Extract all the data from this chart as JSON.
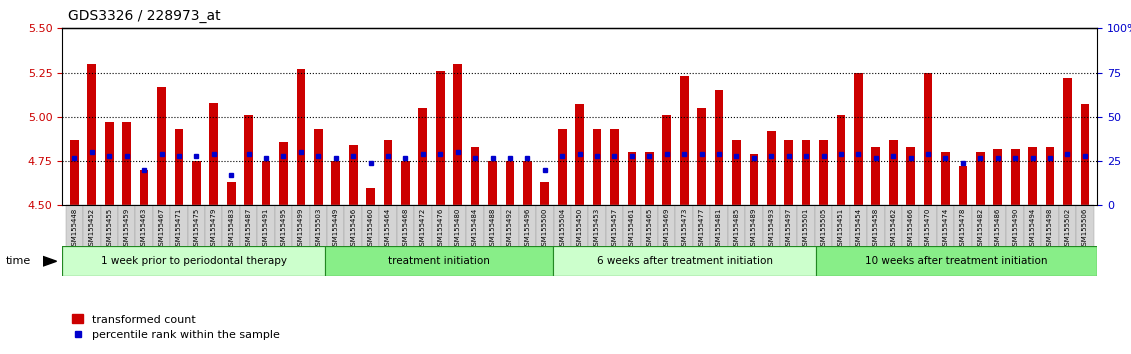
{
  "title": "GDS3326 / 228973_at",
  "ylim": [
    4.5,
    5.5
  ],
  "ylim_right": [
    0,
    100
  ],
  "yticks_left": [
    4.5,
    4.75,
    5.0,
    5.25,
    5.5
  ],
  "yticks_right": [
    0,
    25,
    50,
    75,
    100
  ],
  "ytick_labels_right": [
    "0",
    "25",
    "50",
    "75",
    "100%"
  ],
  "dotted_lines": [
    4.75,
    5.0,
    5.25
  ],
  "samples": [
    "GSM155448",
    "GSM155452",
    "GSM155455",
    "GSM155459",
    "GSM155463",
    "GSM155467",
    "GSM155471",
    "GSM155475",
    "GSM155479",
    "GSM155483",
    "GSM155487",
    "GSM155491",
    "GSM155495",
    "GSM155499",
    "GSM155503",
    "GSM155449",
    "GSM155456",
    "GSM155460",
    "GSM155464",
    "GSM155468",
    "GSM155472",
    "GSM155476",
    "GSM155480",
    "GSM155484",
    "GSM155488",
    "GSM155492",
    "GSM155496",
    "GSM155500",
    "GSM155504",
    "GSM155450",
    "GSM155453",
    "GSM155457",
    "GSM155461",
    "GSM155465",
    "GSM155469",
    "GSM155473",
    "GSM155477",
    "GSM155481",
    "GSM155485",
    "GSM155489",
    "GSM155493",
    "GSM155497",
    "GSM155501",
    "GSM155505",
    "GSM155451",
    "GSM155454",
    "GSM155458",
    "GSM155462",
    "GSM155466",
    "GSM155470",
    "GSM155474",
    "GSM155478",
    "GSM155482",
    "GSM155486",
    "GSM155490",
    "GSM155494",
    "GSM155498",
    "GSM155502",
    "GSM155506"
  ],
  "bar_values": [
    4.87,
    5.3,
    4.97,
    4.97,
    4.7,
    5.17,
    4.93,
    4.75,
    5.08,
    4.63,
    5.01,
    4.75,
    4.86,
    5.27,
    4.93,
    4.75,
    4.84,
    4.6,
    4.87,
    4.75,
    5.05,
    5.26,
    5.3,
    4.83,
    4.75,
    4.75,
    4.75,
    4.63,
    4.93,
    5.07,
    4.93,
    4.93,
    4.8,
    4.8,
    5.01,
    5.23,
    5.05,
    5.15,
    4.87,
    4.79,
    4.92,
    4.87,
    4.87,
    4.87,
    5.01,
    5.25,
    4.83,
    4.87,
    4.83,
    5.25,
    4.8,
    4.72,
    4.8,
    4.82,
    4.82,
    4.83,
    4.83,
    5.22,
    5.07
  ],
  "percentile_values": [
    27,
    30,
    28,
    28,
    20,
    29,
    28,
    28,
    29,
    17,
    29,
    27,
    28,
    30,
    28,
    27,
    28,
    24,
    28,
    27,
    29,
    29,
    30,
    27,
    27,
    27,
    27,
    20,
    28,
    29,
    28,
    28,
    28,
    28,
    29,
    29,
    29,
    29,
    28,
    27,
    28,
    28,
    28,
    28,
    29,
    29,
    27,
    28,
    27,
    29,
    27,
    24,
    27,
    27,
    27,
    27,
    27,
    29,
    28
  ],
  "groups": [
    {
      "label": "1 week prior to periodontal therapy",
      "start": 0,
      "end": 15,
      "color": "#ccffcc"
    },
    {
      "label": "treatment initiation",
      "start": 15,
      "end": 28,
      "color": "#88ee88"
    },
    {
      "label": "6 weeks after treatment initiation",
      "start": 28,
      "end": 43,
      "color": "#ccffcc"
    },
    {
      "label": "10 weeks after treatment initiation",
      "start": 43,
      "end": 59,
      "color": "#88ee88"
    }
  ],
  "bar_color": "#cc0000",
  "dot_color": "#0000cc",
  "bar_baseline": 4.5,
  "left_tick_color": "#cc0000",
  "right_tick_color": "#0000cc",
  "legend_bar_label": "transformed count",
  "legend_dot_label": "percentile rank within the sample"
}
